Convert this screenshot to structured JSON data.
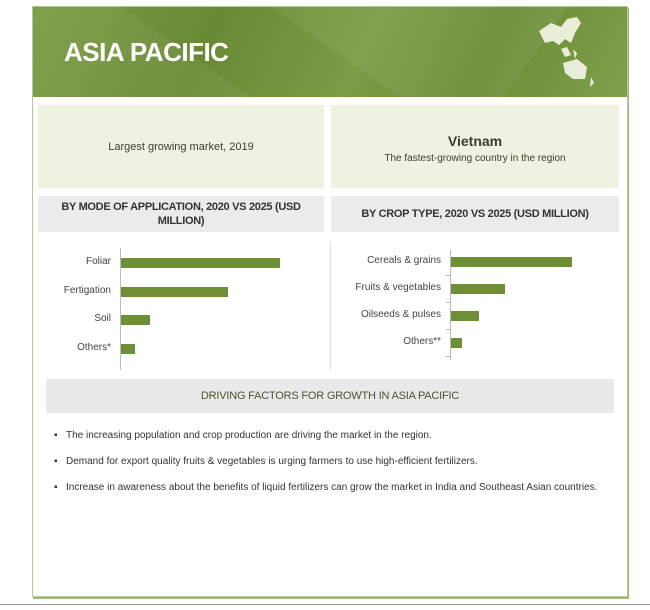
{
  "header": {
    "title": "ASIA PACIFIC",
    "map_icon": "asia-pacific-map-icon"
  },
  "highlights": {
    "left_text": "Largest growing market, 2019",
    "right_title": "Vietnam",
    "right_text": "The fastest-growing country in the region"
  },
  "colors": {
    "brand_green": "#6e8f35",
    "panel_bg": "#eef2e0",
    "header_bg": "#ebebeb"
  },
  "chart_data": [
    {
      "type": "bar",
      "orientation": "horizontal",
      "title": "BY MODE OF APPLICATION,  2020 VS 2025 (USD MILLION)",
      "categories": [
        "Foliar",
        "Fertigation",
        "Soil",
        "Others*"
      ],
      "relative_values": [
        100,
        67,
        18,
        9
      ],
      "grid": false
    },
    {
      "type": "bar",
      "orientation": "horizontal",
      "title": "BY CROP TYPE, 2020 VS 2025 (USD MILLION)",
      "categories": [
        "Cereals & grains",
        "Fruits & vegetables",
        "Oilseeds & pulses",
        "Others**"
      ],
      "relative_values": [
        100,
        45,
        23,
        9
      ],
      "grid": false
    }
  ],
  "driving": {
    "title": "DRIVING FACTORS FOR GROWTH IN ASIA PACIFIC",
    "bullets": [
      "The increasing population and crop production are driving the market in the region.",
      "Demand for export quality  fruits & vegetables  is urging farmers to use high-efficient fertilizers.",
      "Increase in awareness about  the  benefits of liquid fertilizers can grow the market  in India and Southeast Asian countries."
    ]
  }
}
